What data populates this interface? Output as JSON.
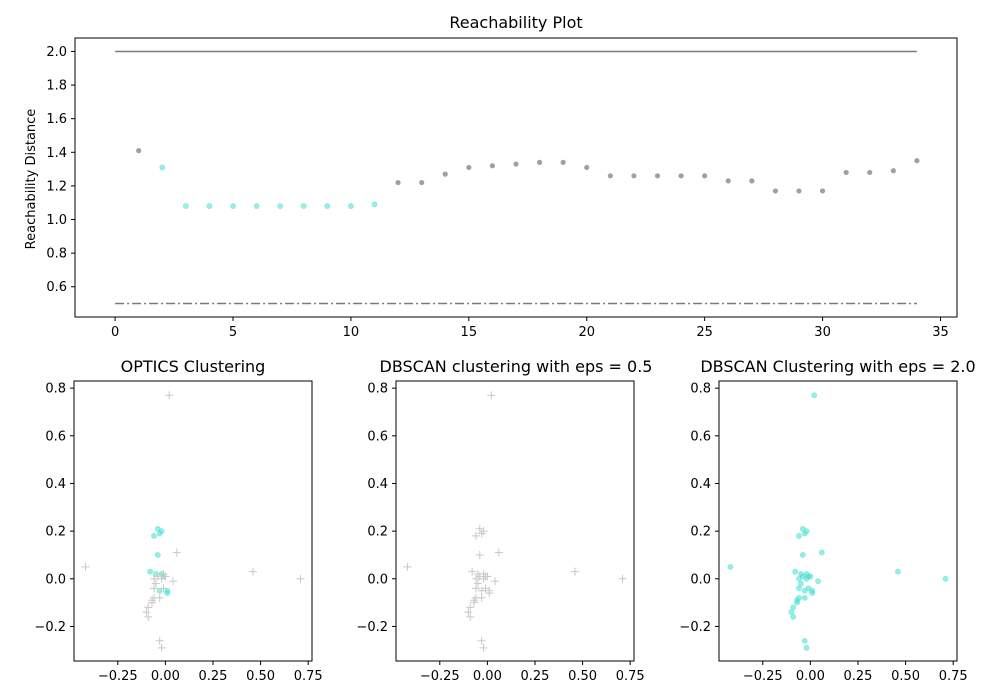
{
  "colors": {
    "cluster": "#40E0D0",
    "noise": "#808080",
    "noise_light": "#c8c8c8",
    "axis": "#000000"
  },
  "chart_data": [
    {
      "id": "reachability",
      "type": "scatter",
      "title": "Reachability Plot",
      "xlabel": "",
      "ylabel": "Reachability Distance",
      "xlim": [
        -1.7,
        35.7
      ],
      "ylim": [
        0.42,
        2.08
      ],
      "xticks": [
        0,
        5,
        10,
        15,
        20,
        25,
        30,
        35
      ],
      "yticks": [
        0.6,
        0.8,
        1.0,
        1.2,
        1.4,
        1.6,
        1.8,
        2.0
      ],
      "ytick_labels": [
        "0.6",
        "0.8",
        "1.0",
        "1.2",
        "1.4",
        "1.6",
        "1.8",
        "2.0"
      ],
      "hlines": [
        {
          "y": 2.0,
          "style": "solid",
          "xmin": 0,
          "xmax": 34
        },
        {
          "y": 0.5,
          "style": "dashdot",
          "xmin": 0,
          "xmax": 34
        }
      ],
      "series": [
        {
          "role": "cluster",
          "x": [
            2,
            3,
            4,
            5,
            6,
            7,
            8,
            9,
            10,
            11
          ],
          "y": [
            1.31,
            1.08,
            1.08,
            1.08,
            1.08,
            1.08,
            1.08,
            1.08,
            1.08,
            1.09
          ]
        },
        {
          "role": "noise",
          "x": [
            1,
            12,
            13,
            14,
            15,
            16,
            17,
            18,
            19,
            20,
            21,
            22,
            23,
            24,
            25,
            26,
            27,
            28,
            29,
            30,
            31,
            32,
            33,
            34
          ],
          "y": [
            1.41,
            1.22,
            1.22,
            1.27,
            1.31,
            1.32,
            1.33,
            1.34,
            1.34,
            1.31,
            1.26,
            1.26,
            1.26,
            1.26,
            1.26,
            1.23,
            1.23,
            1.17,
            1.17,
            1.17,
            1.28,
            1.28,
            1.29,
            1.35
          ]
        }
      ]
    },
    {
      "id": "optics",
      "type": "scatter",
      "title": "OPTICS Clustering",
      "xlim": [
        -0.48,
        0.77
      ],
      "ylim": [
        -0.345,
        0.83
      ],
      "xticks": [
        -0.25,
        0.0,
        0.25,
        0.5,
        0.75
      ],
      "xtick_labels": [
        "−0.25",
        "0.00",
        "0.25",
        "0.50",
        "0.75"
      ],
      "yticks": [
        -0.2,
        0.0,
        0.2,
        0.4,
        0.6,
        0.8
      ],
      "ytick_labels": [
        "−0.2",
        "0.0",
        "0.2",
        "0.4",
        "0.6",
        "0.8"
      ],
      "series": [
        {
          "role": "cluster",
          "x": [
            -0.06,
            -0.04,
            -0.03,
            -0.02,
            -0.04,
            -0.08,
            -0.05,
            -0.02,
            -0.03,
            0.01,
            0.01,
            -0.01
          ],
          "y": [
            0.18,
            0.21,
            0.19,
            0.2,
            0.1,
            0.03,
            0.02,
            0.02,
            -0.05,
            -0.05,
            -0.06,
            0.01
          ]
        },
        {
          "role": "noise",
          "x": [
            0.02,
            -0.42,
            0.06,
            0.46,
            0.71,
            -0.06,
            -0.05,
            -0.04,
            -0.02,
            0.0,
            -0.01,
            -0.03,
            -0.06,
            -0.07,
            -0.09,
            -0.1,
            -0.09,
            -0.07,
            -0.06,
            -0.03,
            -0.02,
            0.04,
            -0.01
          ],
          "y": [
            0.77,
            0.05,
            0.11,
            0.03,
            0.0,
            0.0,
            -0.02,
            0.01,
            0.0,
            0.01,
            -0.04,
            -0.08,
            -0.08,
            -0.1,
            -0.12,
            -0.14,
            -0.16,
            -0.09,
            -0.04,
            -0.26,
            -0.29,
            -0.01,
            0.02
          ]
        }
      ]
    },
    {
      "id": "dbscan05",
      "type": "scatter",
      "title": "DBSCAN clustering with eps = 0.5",
      "xlim": [
        -0.48,
        0.77
      ],
      "ylim": [
        -0.345,
        0.83
      ],
      "xticks": [
        -0.25,
        0.0,
        0.25,
        0.5,
        0.75
      ],
      "xtick_labels": [
        "−0.25",
        "0.00",
        "0.25",
        "0.50",
        "0.75"
      ],
      "yticks": [
        -0.2,
        0.0,
        0.2,
        0.4,
        0.6,
        0.8
      ],
      "ytick_labels": [
        "−0.2",
        "0.0",
        "0.2",
        "0.4",
        "0.6",
        "0.8"
      ],
      "series": [
        {
          "role": "noise",
          "x": [
            0.02,
            -0.42,
            0.06,
            0.46,
            0.71,
            -0.06,
            -0.04,
            -0.03,
            -0.02,
            -0.04,
            -0.08,
            -0.05,
            -0.02,
            -0.03,
            0.01,
            0.01,
            -0.01,
            -0.06,
            -0.05,
            -0.04,
            -0.02,
            0.0,
            -0.01,
            -0.03,
            -0.06,
            -0.07,
            -0.09,
            -0.1,
            -0.09,
            -0.07,
            -0.06,
            -0.03,
            -0.02,
            0.04
          ],
          "y": [
            0.77,
            0.05,
            0.11,
            0.03,
            0.0,
            0.18,
            0.21,
            0.19,
            0.2,
            0.1,
            0.03,
            0.02,
            0.02,
            -0.05,
            -0.05,
            -0.06,
            0.01,
            0.0,
            -0.02,
            0.01,
            0.0,
            0.01,
            -0.04,
            -0.08,
            -0.08,
            -0.1,
            -0.12,
            -0.14,
            -0.16,
            -0.09,
            -0.04,
            -0.26,
            -0.29,
            -0.01
          ]
        }
      ]
    },
    {
      "id": "dbscan20",
      "type": "scatter",
      "title": "DBSCAN Clustering with eps = 2.0",
      "xlim": [
        -0.48,
        0.77
      ],
      "ylim": [
        -0.345,
        0.83
      ],
      "xticks": [
        -0.25,
        0.0,
        0.25,
        0.5,
        0.75
      ],
      "xtick_labels": [
        "−0.25",
        "0.00",
        "0.25",
        "0.50",
        "0.75"
      ],
      "yticks": [
        -0.2,
        0.0,
        0.2,
        0.4,
        0.6,
        0.8
      ],
      "ytick_labels": [
        "−0.2",
        "0.0",
        "0.2",
        "0.4",
        "0.6",
        "0.8"
      ],
      "series": [
        {
          "role": "cluster",
          "x": [
            0.02,
            -0.42,
            0.06,
            0.46,
            0.71,
            -0.06,
            -0.04,
            -0.03,
            -0.02,
            -0.04,
            -0.08,
            -0.05,
            -0.02,
            -0.03,
            0.01,
            0.01,
            -0.01,
            -0.06,
            -0.05,
            -0.04,
            -0.02,
            0.0,
            -0.01,
            -0.03,
            -0.06,
            -0.07,
            -0.09,
            -0.1,
            -0.09,
            -0.07,
            -0.06,
            -0.03,
            -0.02,
            0.04
          ],
          "y": [
            0.77,
            0.05,
            0.11,
            0.03,
            0.0,
            0.18,
            0.21,
            0.19,
            0.2,
            0.1,
            0.03,
            0.02,
            0.02,
            -0.05,
            -0.05,
            -0.06,
            0.01,
            0.0,
            -0.02,
            0.01,
            0.0,
            0.01,
            -0.04,
            -0.08,
            -0.08,
            -0.1,
            -0.12,
            -0.14,
            -0.16,
            -0.09,
            -0.04,
            -0.26,
            -0.29,
            -0.01
          ]
        }
      ]
    }
  ]
}
